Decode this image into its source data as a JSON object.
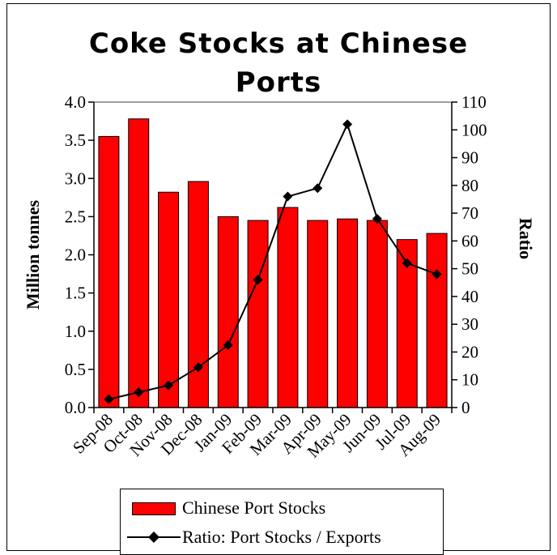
{
  "chart_data": {
    "type": "bar",
    "title": "Coke Stocks at Chinese Ports",
    "categories": [
      "Sep-08",
      "Oct-08",
      "Nov-08",
      "Dec-08",
      "Jan-09",
      "Feb-09",
      "Mar-09",
      "Apr-09",
      "May-09",
      "Jun-09",
      "Jul-09",
      "Aug-09"
    ],
    "series": [
      {
        "name": "Chinese Port Stocks",
        "type": "bar",
        "axis": "left",
        "color": "#ff0000",
        "values": [
          3.55,
          3.78,
          2.82,
          2.96,
          2.5,
          2.45,
          2.62,
          2.45,
          2.47,
          2.45,
          2.2,
          2.28
        ]
      },
      {
        "name": "Ratio: Port Stocks / Exports",
        "type": "line",
        "axis": "right",
        "color": "#000000",
        "marker": "diamond",
        "values": [
          3,
          5.5,
          8,
          14.5,
          22.5,
          46,
          76,
          79,
          102,
          68,
          52,
          48
        ]
      }
    ],
    "ylabel": "Million tonnes",
    "y2label": "Ratio",
    "xlabel": "",
    "ylim": [
      0,
      4.0
    ],
    "y2lim": [
      0,
      110
    ],
    "yticks": [
      "0.0",
      "0.5",
      "1.0",
      "1.5",
      "2.0",
      "2.5",
      "3.0",
      "3.5",
      "4.0"
    ],
    "y2ticks": [
      "0",
      "10",
      "20",
      "30",
      "40",
      "50",
      "60",
      "70",
      "80",
      "90",
      "100",
      "110"
    ],
    "grid": false,
    "legend_position": "bottom"
  }
}
